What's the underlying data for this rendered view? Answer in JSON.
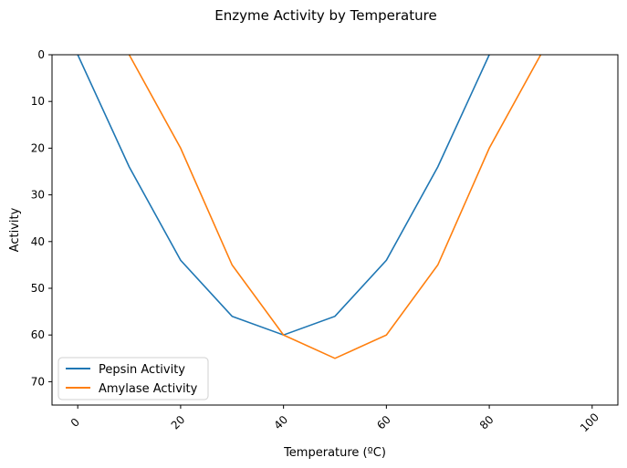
{
  "chart_data": {
    "type": "line",
    "title": "Enzyme Activity by Temperature",
    "xlabel": "Temperature (ºC)",
    "ylabel": "Activity",
    "xlim": [
      -5,
      105
    ],
    "ylim": [
      75,
      0
    ],
    "y_inverted": true,
    "grid": false,
    "legend_position": "bottom-left",
    "x_ticks": [
      0,
      20,
      40,
      60,
      80,
      100
    ],
    "x_tick_rotation": 45,
    "y_ticks": [
      0,
      10,
      20,
      30,
      40,
      50,
      60,
      70
    ],
    "series": [
      {
        "name": "Pepsin Activity",
        "color": "#1f77b4",
        "x": [
          0,
          10,
          20,
          30,
          40,
          50,
          60,
          70,
          80
        ],
        "y": [
          0,
          24,
          44,
          56,
          60,
          56,
          44,
          24,
          0
        ]
      },
      {
        "name": "Amylase Activity",
        "color": "#ff7f0e",
        "x": [
          10,
          20,
          30,
          40,
          50,
          60,
          70,
          80,
          90
        ],
        "y": [
          0,
          20,
          45,
          60,
          65,
          60,
          45,
          20,
          0
        ]
      }
    ]
  }
}
